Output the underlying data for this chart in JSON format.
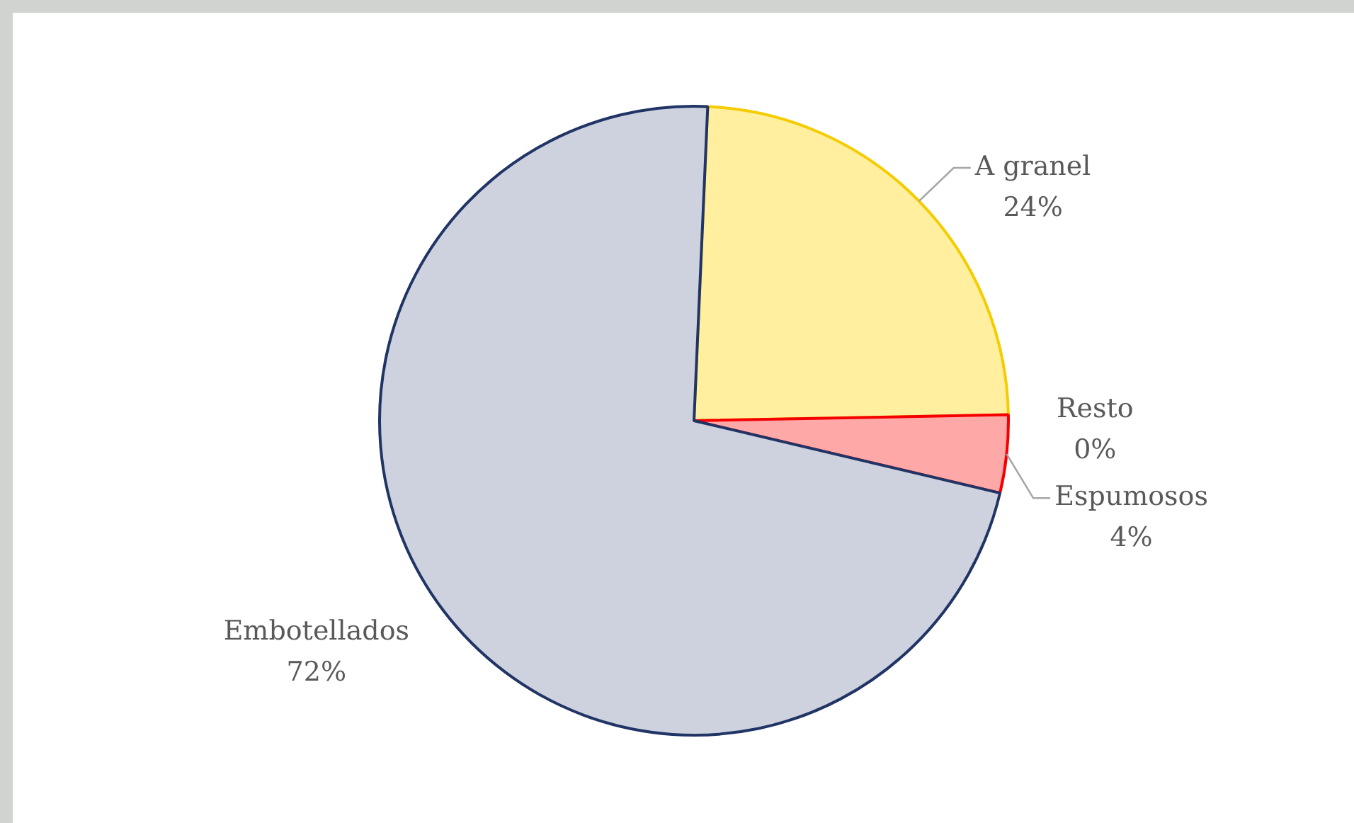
{
  "chart_data": {
    "type": "pie",
    "categories": [
      "A granel",
      "Resto",
      "Espumosos",
      "Embotellados"
    ],
    "values": [
      24,
      0,
      4,
      72
    ],
    "colors": [
      "#ffef9e",
      "#4472c4",
      "#ffa8a8",
      "#cdd2de"
    ],
    "value_labels": [
      "24%",
      "0%",
      "4%",
      "72%"
    ]
  }
}
